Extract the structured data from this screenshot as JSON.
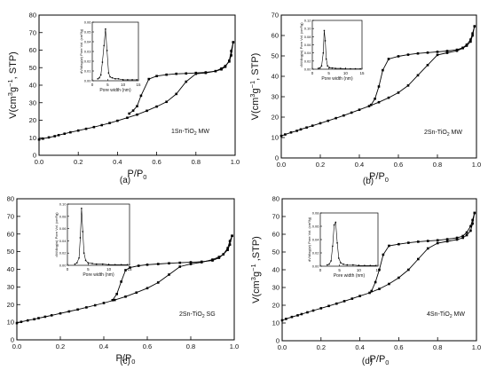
{
  "chart_data": [
    {
      "type": "line",
      "caption": "(a)",
      "sample_label": "1Sn-TiO",
      "sample_sub": "2",
      "sample_suffix": " MW",
      "ylabel_main": "V(cm",
      "ylabel_sup1": "3",
      "ylabel_mid": "g",
      "ylabel_sup2": "−1",
      "ylabel_end": ", STP)",
      "xlabel_main": "P/P",
      "xlabel_sub": "0",
      "xlim": [
        0,
        1.0
      ],
      "ylim": [
        0,
        80
      ],
      "xticks": [
        0.0,
        0.2,
        0.4,
        0.6,
        0.8,
        1.0
      ],
      "yticks": [
        0,
        10,
        20,
        30,
        40,
        50,
        60,
        70,
        80
      ],
      "adsorption": {
        "x": [
          0.0,
          0.02,
          0.05,
          0.08,
          0.1,
          0.13,
          0.16,
          0.2,
          0.24,
          0.28,
          0.32,
          0.36,
          0.4,
          0.45,
          0.5,
          0.55,
          0.6,
          0.65,
          0.7,
          0.75,
          0.8,
          0.85,
          0.9,
          0.93,
          0.95,
          0.97,
          0.98,
          0.99
        ],
        "y": [
          9.0,
          9.5,
          10.2,
          10.9,
          11.5,
          12.3,
          13.1,
          14.1,
          15.1,
          16.1,
          17.2,
          18.4,
          19.7,
          21.4,
          23.2,
          25.4,
          27.8,
          30.5,
          35.0,
          42.0,
          46.5,
          47.0,
          48.0,
          49.5,
          51.0,
          53.5,
          57.0,
          64.5
        ]
      },
      "desorption": {
        "x": [
          0.99,
          0.98,
          0.97,
          0.95,
          0.93,
          0.9,
          0.85,
          0.8,
          0.75,
          0.7,
          0.65,
          0.6,
          0.56,
          0.52,
          0.5,
          0.48,
          0.46
        ],
        "y": [
          64.5,
          59.5,
          54.0,
          50.5,
          49.0,
          48.0,
          47.3,
          47.0,
          46.7,
          46.5,
          46.0,
          45.2,
          43.5,
          34.0,
          28.0,
          25.5,
          23.8
        ]
      },
      "inset": {
        "xlabel": "Pore width (nm)",
        "ylabel": "dV/dlog(w) Pore Vol. (cm³/g)",
        "xlim": [
          0,
          15
        ],
        "ylim": [
          0,
          0.06
        ],
        "xticks": [
          0,
          5,
          10,
          15
        ],
        "yticks": [
          0.0,
          0.01,
          0.02,
          0.03,
          0.04,
          0.05,
          0.06
        ],
        "ytick_labels": [
          "0.00",
          "0.01",
          "0.02",
          "0.03",
          "0.04",
          "0.05",
          "0.06"
        ],
        "x": [
          1.8,
          2.3,
          2.8,
          3.3,
          3.8,
          4.3,
          4.8,
          5.3,
          5.8,
          6.5,
          7.5,
          8.5,
          10,
          11.5,
          13,
          14.5
        ],
        "y": [
          0.002,
          0.003,
          0.006,
          0.019,
          0.036,
          0.053,
          0.031,
          0.008,
          0.004,
          0.003,
          0.002,
          0.002,
          0.001,
          0.001,
          0.001,
          0.001
        ]
      }
    },
    {
      "type": "line",
      "caption": "(b)",
      "sample_label": "2Sn-TiO",
      "sample_sub": "2",
      "sample_suffix": " MW",
      "ylabel_main": "V(cm",
      "ylabel_sup1": "3",
      "ylabel_mid": "g",
      "ylabel_sup2": "−1",
      "ylabel_end": ", STP)",
      "xlabel_main": "P/P",
      "xlabel_sub": "0",
      "xlim": [
        0,
        1.0
      ],
      "ylim": [
        0,
        70
      ],
      "xticks": [
        0.0,
        0.2,
        0.4,
        0.6,
        0.8,
        1.0
      ],
      "yticks": [
        0,
        10,
        20,
        30,
        40,
        50,
        60,
        70
      ],
      "adsorption": {
        "x": [
          0.0,
          0.02,
          0.05,
          0.08,
          0.1,
          0.13,
          0.16,
          0.2,
          0.24,
          0.28,
          0.32,
          0.36,
          0.4,
          0.45,
          0.5,
          0.55,
          0.6,
          0.65,
          0.7,
          0.75,
          0.8,
          0.85,
          0.9,
          0.93,
          0.95,
          0.97,
          0.98,
          0.99
        ],
        "y": [
          10.8,
          11.5,
          12.5,
          13.3,
          14.0,
          14.9,
          15.8,
          17.0,
          18.2,
          19.5,
          20.8,
          22.2,
          23.6,
          25.4,
          27.3,
          29.5,
          32.0,
          35.5,
          40.5,
          45.5,
          50.5,
          51.5,
          52.5,
          53.8,
          55.0,
          57.0,
          60.0,
          64.5
        ]
      },
      "desorption": {
        "x": [
          0.99,
          0.98,
          0.97,
          0.95,
          0.93,
          0.9,
          0.85,
          0.8,
          0.75,
          0.7,
          0.65,
          0.6,
          0.55,
          0.52,
          0.5,
          0.48,
          0.46
        ],
        "y": [
          64.5,
          61.0,
          58.0,
          55.5,
          54.0,
          53.0,
          52.4,
          52.0,
          51.6,
          51.2,
          50.6,
          49.8,
          48.5,
          43.0,
          35.0,
          29.0,
          26.0
        ]
      },
      "inset": {
        "xlabel": "Pore width (nm)",
        "ylabel": "dV/dlog(w) Pore Vol. (cm³/g)",
        "xlim": [
          0,
          15
        ],
        "ylim": [
          0,
          0.12
        ],
        "xticks": [
          0,
          5,
          10,
          15
        ],
        "yticks": [
          0.0,
          0.02,
          0.04,
          0.06,
          0.08,
          0.1,
          0.12
        ],
        "ytick_labels": [
          "0.00",
          "0.02",
          "0.04",
          "0.06",
          "0.08",
          "0.10",
          "0.12"
        ],
        "x": [
          1.8,
          2.3,
          2.8,
          3.3,
          3.6,
          3.9,
          4.2,
          4.6,
          5.2,
          6,
          7,
          8.5,
          10,
          11.5,
          13,
          14.5
        ],
        "y": [
          0.002,
          0.003,
          0.008,
          0.04,
          0.095,
          0.07,
          0.025,
          0.008,
          0.004,
          0.003,
          0.002,
          0.002,
          0.001,
          0.001,
          0.001,
          0.001
        ]
      }
    },
    {
      "type": "line",
      "caption": "(c)",
      "sample_label": "2Sn-TiO",
      "sample_sub": "2",
      "sample_suffix": " SG",
      "ylabel_main": "V(cm",
      "ylabel_sup1": "3",
      "ylabel_mid": "g",
      "ylabel_sup2": "−1",
      "ylabel_end": ",STP)",
      "xlabel_main": "P/P",
      "xlabel_sub": "0",
      "xlim": [
        0,
        1.0
      ],
      "ylim": [
        0,
        80
      ],
      "xticks": [
        0.0,
        0.2,
        0.4,
        0.6,
        0.8,
        1.0
      ],
      "yticks": [
        0,
        10,
        20,
        30,
        40,
        50,
        60,
        70,
        80
      ],
      "adsorption": {
        "x": [
          0.0,
          0.02,
          0.05,
          0.08,
          0.1,
          0.13,
          0.16,
          0.2,
          0.24,
          0.28,
          0.32,
          0.36,
          0.4,
          0.45,
          0.5,
          0.55,
          0.6,
          0.65,
          0.7,
          0.75,
          0.8,
          0.85,
          0.9,
          0.93,
          0.95,
          0.97,
          0.98,
          0.99
        ],
        "y": [
          9.5,
          10.2,
          11.0,
          11.7,
          12.3,
          13.1,
          13.9,
          15.0,
          16.1,
          17.2,
          18.4,
          19.6,
          20.9,
          22.6,
          24.5,
          26.8,
          29.3,
          32.5,
          37.0,
          41.5,
          43.0,
          44.0,
          45.5,
          47.0,
          48.5,
          51.0,
          54.0,
          59.0
        ]
      },
      "desorption": {
        "x": [
          0.99,
          0.98,
          0.97,
          0.95,
          0.93,
          0.9,
          0.85,
          0.8,
          0.75,
          0.7,
          0.65,
          0.6,
          0.56,
          0.52,
          0.5,
          0.48,
          0.46,
          0.44
        ],
        "y": [
          59.0,
          56.0,
          52.0,
          48.5,
          46.5,
          45.0,
          44.3,
          44.0,
          43.7,
          43.4,
          43.0,
          42.6,
          42.0,
          41.0,
          39.5,
          33.0,
          26.0,
          22.5
        ]
      },
      "inset": {
        "xlabel": "Pore width (nm)",
        "ylabel": "dV/dlog(w) Pore Vol. (cm³/g)",
        "xlim": [
          0,
          15
        ],
        "ylim": [
          0,
          0.1
        ],
        "xticks": [
          0,
          5,
          10,
          15
        ],
        "yticks": [
          0.0,
          0.02,
          0.04,
          0.06,
          0.08,
          0.1
        ],
        "ytick_labels": [
          "0.00",
          "0.02",
          "0.04",
          "0.06",
          "0.08",
          "0.10"
        ],
        "x": [
          1.8,
          2.3,
          2.8,
          3.1,
          3.4,
          3.7,
          4.0,
          4.4,
          5.0,
          6,
          7,
          8.5,
          10,
          11.5,
          13,
          14.5
        ],
        "y": [
          0.002,
          0.004,
          0.012,
          0.045,
          0.093,
          0.055,
          0.02,
          0.008,
          0.004,
          0.003,
          0.002,
          0.002,
          0.001,
          0.001,
          0.001,
          0.001
        ]
      }
    },
    {
      "type": "line",
      "caption": "(d)",
      "sample_label": "4Sn-TiO",
      "sample_sub": "2",
      "sample_suffix": " MW",
      "ylabel_main": "V(cm",
      "ylabel_sup1": "3",
      "ylabel_mid": "g",
      "ylabel_sup2": "−1",
      "ylabel_end": " ,STP)",
      "xlabel_main": "P/P",
      "xlabel_sub": "0",
      "xlim": [
        0,
        1.0
      ],
      "ylim": [
        0,
        80
      ],
      "xticks": [
        0.0,
        0.2,
        0.4,
        0.6,
        0.8,
        1.0
      ],
      "yticks": [
        0,
        10,
        20,
        30,
        40,
        50,
        60,
        70,
        80
      ],
      "adsorption": {
        "x": [
          0.0,
          0.02,
          0.05,
          0.08,
          0.1,
          0.13,
          0.16,
          0.2,
          0.24,
          0.28,
          0.32,
          0.36,
          0.4,
          0.45,
          0.5,
          0.55,
          0.6,
          0.65,
          0.7,
          0.75,
          0.8,
          0.85,
          0.9,
          0.93,
          0.95,
          0.97,
          0.98,
          0.99
        ],
        "y": [
          11.5,
          12.3,
          13.4,
          14.3,
          15.0,
          16.0,
          17.0,
          18.3,
          19.6,
          20.9,
          22.3,
          23.7,
          25.2,
          27.0,
          29.2,
          32.0,
          35.5,
          40.0,
          46.0,
          52.0,
          55.0,
          56.0,
          57.0,
          58.0,
          59.5,
          62.0,
          66.0,
          72.0
        ]
      },
      "desorption": {
        "x": [
          0.99,
          0.98,
          0.97,
          0.95,
          0.93,
          0.9,
          0.85,
          0.8,
          0.75,
          0.7,
          0.65,
          0.6,
          0.55,
          0.52,
          0.5,
          0.48,
          0.46
        ],
        "y": [
          72.0,
          68.0,
          64.5,
          61.0,
          59.0,
          58.0,
          57.2,
          56.6,
          56.2,
          55.8,
          55.2,
          54.4,
          53.5,
          48.5,
          40.0,
          33.0,
          28.0
        ]
      },
      "inset": {
        "xlabel": "Pore width (nm)",
        "ylabel": "dV/dlog(w) Pore Vol. (cm³/g)",
        "xlim": [
          0,
          15
        ],
        "ylim": [
          0,
          0.08
        ],
        "xticks": [
          0,
          5,
          10,
          15
        ],
        "yticks": [
          0.0,
          0.02,
          0.04,
          0.06,
          0.08
        ],
        "ytick_labels": [
          "0.00",
          "0.02",
          "0.04",
          "0.06",
          "0.08"
        ],
        "x": [
          1.8,
          2.3,
          2.8,
          3.2,
          3.6,
          4.0,
          4.4,
          4.8,
          5.3,
          6,
          7,
          8.5,
          10,
          11.5,
          13,
          14.5
        ],
        "y": [
          0.002,
          0.003,
          0.008,
          0.03,
          0.062,
          0.066,
          0.035,
          0.012,
          0.005,
          0.003,
          0.002,
          0.002,
          0.001,
          0.001,
          0.001,
          0.001
        ]
      }
    }
  ]
}
